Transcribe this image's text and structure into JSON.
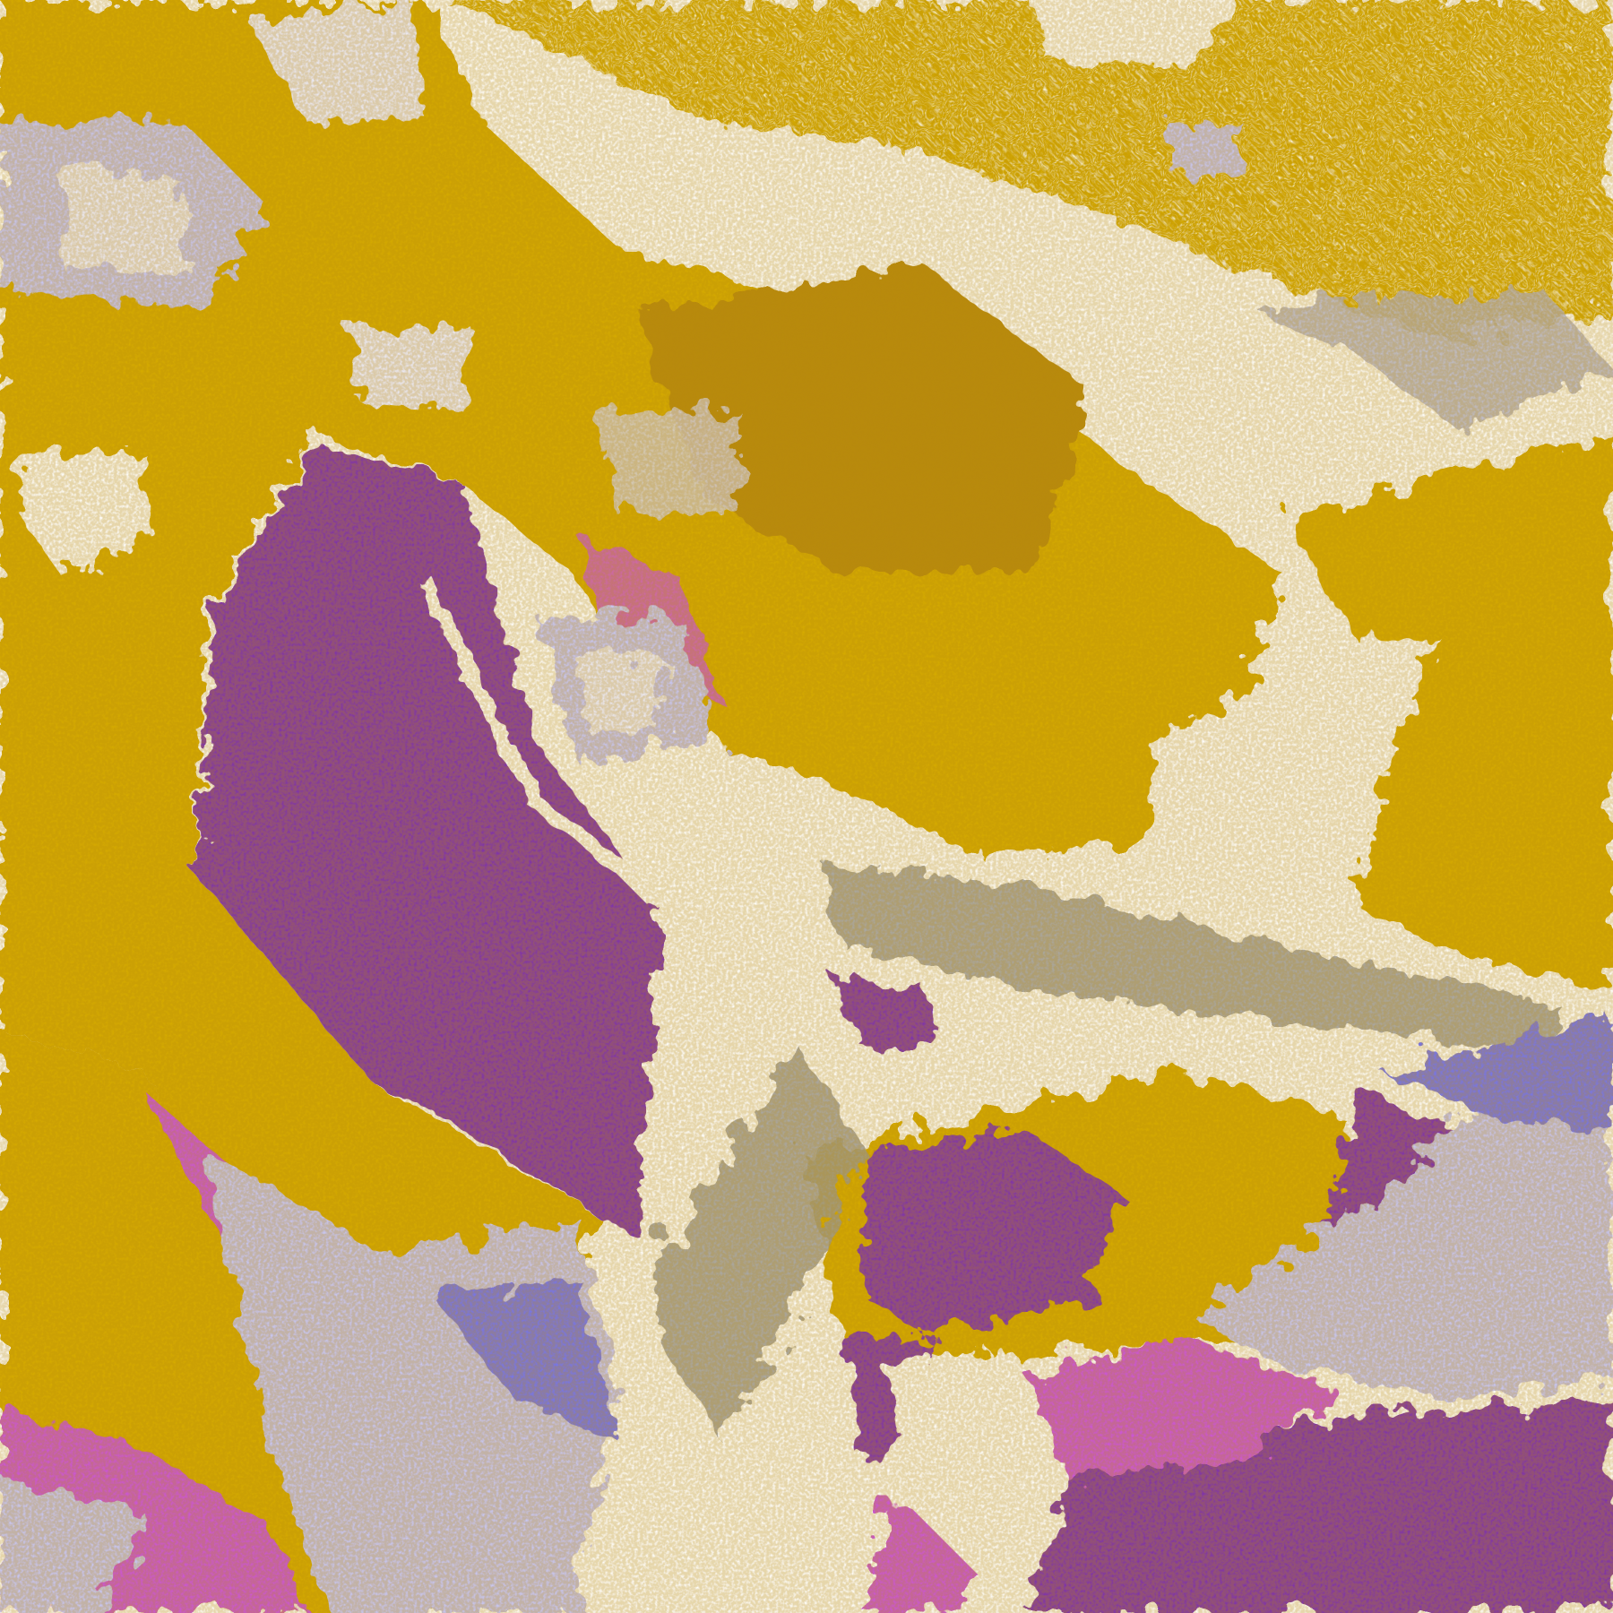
{
  "image": {
    "kind": "false-color satellite classification",
    "palette": {
      "clear": "#ffffff",
      "gold": "#d6ac00",
      "dark_gold": "#b88a10",
      "purple": "#7e33b0",
      "magenta": "#cc55dd",
      "lavender": "#c8c8fa",
      "pale": "#eeeeff",
      "blue": "#7474f0",
      "gray": "#9a9a9a"
    }
  }
}
